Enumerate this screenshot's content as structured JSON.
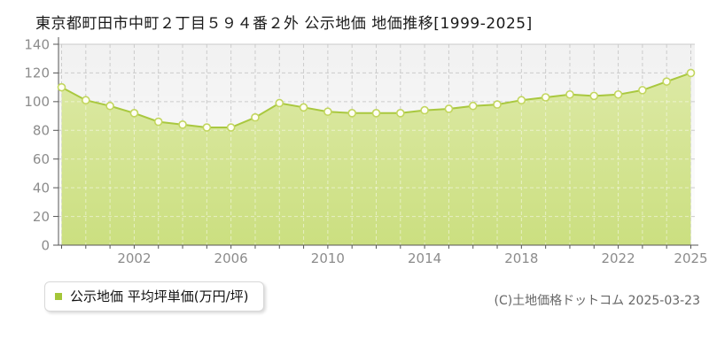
{
  "header": {
    "title": "東京都町田市中町２丁目５９４番２外 公示地価 地価推移[1999-2025]"
  },
  "legend": {
    "label": "公示地価 平均坪単価(万円/坪)",
    "marker_color": "#a4c639"
  },
  "footer": {
    "copyright": "(C)土地価格ドットコム 2025-03-23"
  },
  "chart_data": {
    "type": "area",
    "title": "東京都町田市中町２丁目５９４番２外 公示地価 地価推移[1999-2025]",
    "xlabel": "",
    "ylabel": "公示地価 平均坪単価(万円/坪)",
    "x": [
      1999,
      2000,
      2001,
      2002,
      2003,
      2004,
      2005,
      2006,
      2007,
      2008,
      2009,
      2010,
      2011,
      2012,
      2013,
      2014,
      2015,
      2016,
      2017,
      2018,
      2019,
      2020,
      2021,
      2022,
      2023,
      2024,
      2025
    ],
    "series": [
      {
        "name": "公示地価 平均坪単価(万円/坪)",
        "values": [
          110,
          101,
          97,
          92,
          86,
          84,
          82,
          82,
          89,
          99,
          96,
          93,
          92,
          92,
          92,
          94,
          95,
          97,
          98,
          101,
          103,
          105,
          104,
          105,
          108,
          114,
          120
        ]
      }
    ],
    "ylim": [
      0,
      140
    ],
    "yticks": [
      0,
      20,
      40,
      60,
      80,
      100,
      120,
      140
    ],
    "xticks": [
      2002,
      2006,
      2010,
      2014,
      2018,
      2022,
      2025
    ],
    "grid": true,
    "legend_position": "bottom-left",
    "colors": {
      "line": "#a9c83f",
      "fill_top": "#dce9a4",
      "fill_bottom": "#cbdf80",
      "marker_fill": "#fffef4",
      "marker_stroke": "#c2d65e",
      "grid": "#cccccc",
      "axis": "#555555",
      "tick_label": "#8c8c8c"
    }
  }
}
